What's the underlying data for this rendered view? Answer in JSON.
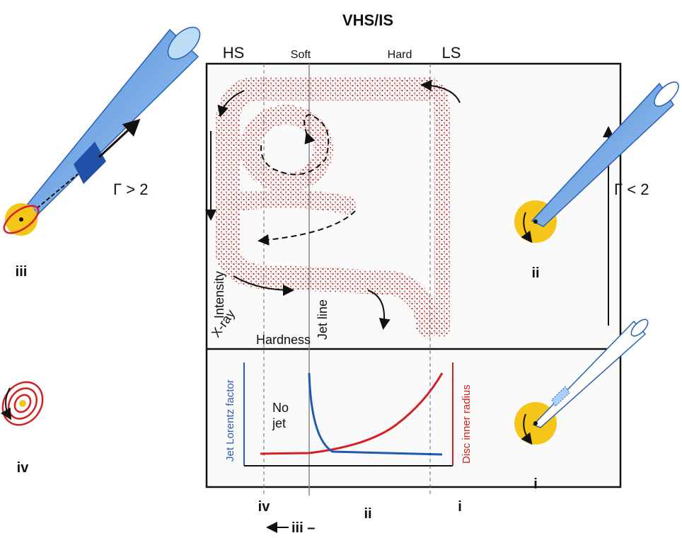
{
  "title": "VHS/IS",
  "states": {
    "hs": "HS",
    "soft": "Soft",
    "hard": "Hard",
    "ls": "LS"
  },
  "upper_panel": {
    "y_label": "Intensity",
    "x_label_1": "X-ray",
    "x_label_2": "Hardness",
    "jet_line": "Jet line"
  },
  "lower_panel": {
    "no_jet": [
      "No",
      "jet"
    ],
    "left_axis": "Jet Lorentz factor",
    "right_axis": "Disc inner radius"
  },
  "jets": [
    {
      "label": "iii",
      "gamma": "Γ > 2"
    },
    {
      "label": "ii",
      "gamma": "Γ < 2"
    },
    {
      "label": "iv"
    },
    {
      "label": "i"
    }
  ],
  "bottom_labels": [
    "iv",
    "ii",
    "i",
    "iii –"
  ]
}
